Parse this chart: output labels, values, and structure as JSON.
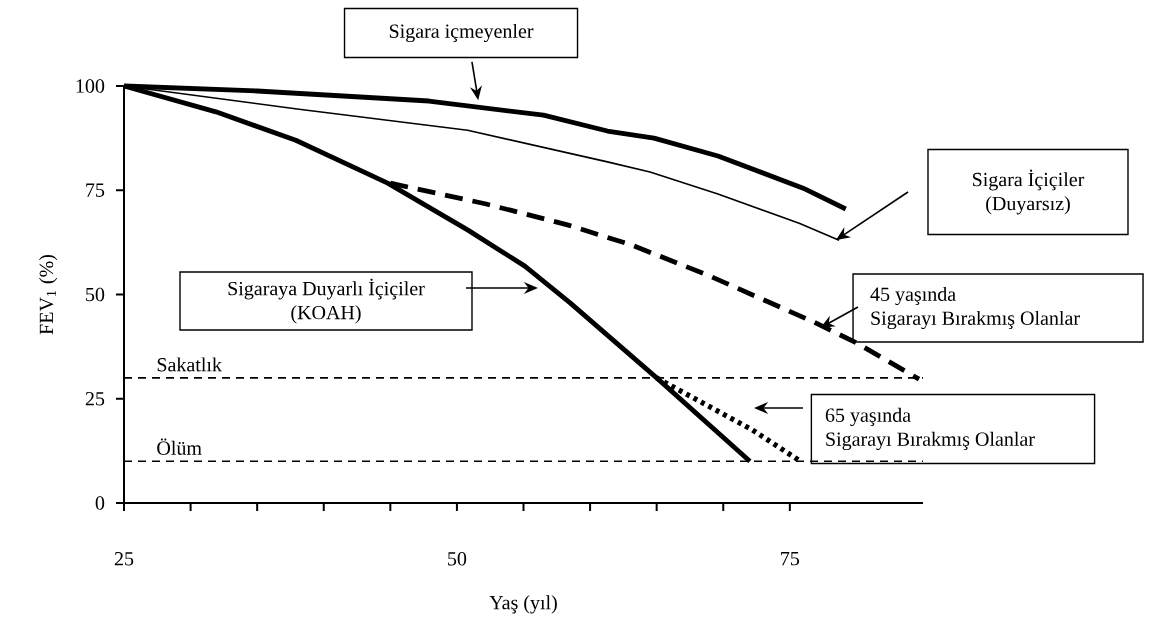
{
  "chart_data": {
    "type": "line",
    "xlabel": "Yaş (yıl)",
    "ylabel": "FEV$_{1}$ (%)",
    "xlim": [
      25,
      85
    ],
    "ylim": [
      0,
      100
    ],
    "xticks": [
      25,
      {
        "value": 30,
        "label": null
      },
      {
        "value": 35,
        "label": null
      },
      {
        "value": 40,
        "label": null
      },
      {
        "value": 45,
        "label": null
      },
      50,
      {
        "value": 55,
        "label": null
      },
      {
        "value": 60,
        "label": null
      },
      {
        "value": 65,
        "label": null
      },
      {
        "value": 70,
        "label": null
      },
      75
    ],
    "yticks": [
      0,
      25,
      50,
      75,
      100
    ],
    "series": [
      {
        "color": "#000000",
        "line_style": "solid",
        "x": [
          25,
          35,
          47.9,
          56.5,
          61.3,
          64.8,
          69.6,
          76,
          79.2
        ],
        "values": [
          100,
          98.8,
          96.4,
          93,
          89.2,
          87.5,
          83.2,
          75.5,
          70.5
        ]
      },
      {
        "color": "#000000",
        "line_style": "solid",
        "x": [
          25,
          38,
          50.8,
          61.3,
          64.5,
          69.6,
          75.7,
          78.7
        ],
        "values": [
          100,
          94.5,
          89.4,
          81.8,
          79.4,
          74.1,
          67.1,
          63
        ]
      },
      {
        "color": "#000000",
        "line_style": "solid",
        "x": [
          25,
          31.9,
          37.9,
          44.8,
          50.8,
          55.1,
          58.5,
          65,
          72
        ],
        "values": [
          100,
          93.8,
          87,
          76.7,
          65.5,
          56.8,
          48,
          30,
          10
        ]
      },
      {
        "color": "#000000",
        "line_style": "dashed",
        "x": [
          45,
          52.2,
          58.3,
          63,
          68.8,
          76.8,
          80,
          84.7
        ],
        "values": [
          76.7,
          71.7,
          66.7,
          62,
          54.7,
          43.4,
          38.4,
          29.7
        ]
      },
      {
        "color": "#000000",
        "line_style": "dotted",
        "x": [
          65,
          72.2,
          75.8
        ],
        "values": [
          30,
          17.5,
          10
        ]
      }
    ],
    "ref_lines": [
      {
        "axis": "y",
        "value": 30,
        "label": "Sakatlık",
        "color": "#000000",
        "line_style": "dashed"
      },
      {
        "axis": "y",
        "value": 10,
        "label": "Ölüm",
        "color": "#000000",
        "line_style": "dashed"
      }
    ],
    "annotations": [
      {
        "text": "Sigara içmeyenler",
        "x": 51.6,
        "y": 96.6
      },
      "Sigara İçiçiler (Duyarsız)",
      "Sigaraya Duyarlı İçiçiler (KOAH)",
      {
        "text": "45 yaşında Sigarayı Bırakmış Olanlar",
        "x": 77.3,
        "y": 42
      },
      "65 yaşında Sigarayı Bırakmış Olanlar"
    ]
  }
}
